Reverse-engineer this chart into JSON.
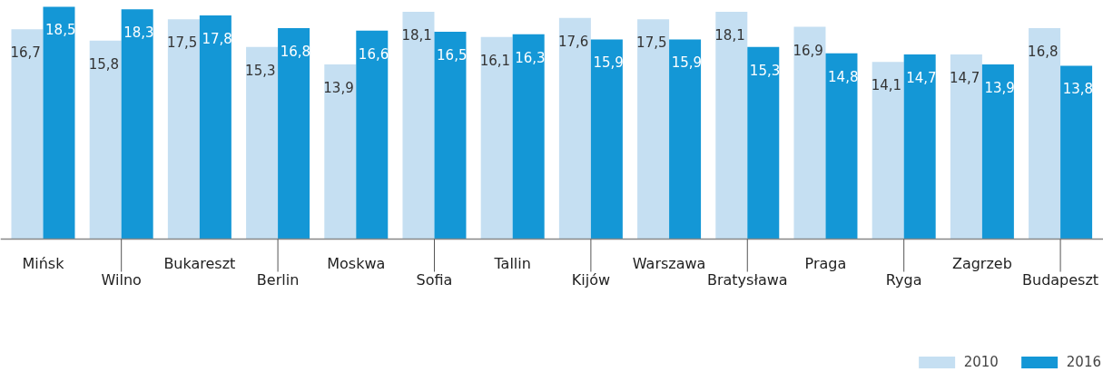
{
  "chart_data": {
    "type": "bar",
    "categories": [
      "Mińsk",
      "Wilno",
      "Bukareszt",
      "Berlin",
      "Moskwa",
      "Sofia",
      "Tallin",
      "Kijów",
      "Warszawa",
      "Bratysława",
      "Praga",
      "Ryga",
      "Zagrzeb",
      "Budapeszt"
    ],
    "series": [
      {
        "name": "2010",
        "color": "#c5dff2",
        "values": [
          16.7,
          15.8,
          17.5,
          15.3,
          13.9,
          18.1,
          16.1,
          17.6,
          17.5,
          18.1,
          16.9,
          14.1,
          14.7,
          16.8
        ],
        "value_labels": [
          "16,7",
          "15,8",
          "17,5",
          "15,3",
          "13,9",
          "18,1",
          "16,1",
          "17,6",
          "17,5",
          "18,1",
          "16,9",
          "14,1",
          "14,7",
          "16,8"
        ]
      },
      {
        "name": "2016",
        "color": "#1497d6",
        "values": [
          18.5,
          18.3,
          17.8,
          16.8,
          16.6,
          16.5,
          16.3,
          15.9,
          15.9,
          15.3,
          14.8,
          14.7,
          13.9,
          13.8
        ],
        "value_labels": [
          "18,5",
          "18,3",
          "17,8",
          "16,8",
          "16,6",
          "16,5",
          "16,3",
          "15,9",
          "15,9",
          "15,3",
          "14,8",
          "14,7",
          "13,9",
          "13,8"
        ]
      }
    ],
    "legend": "bottom right",
    "grid": false
  }
}
